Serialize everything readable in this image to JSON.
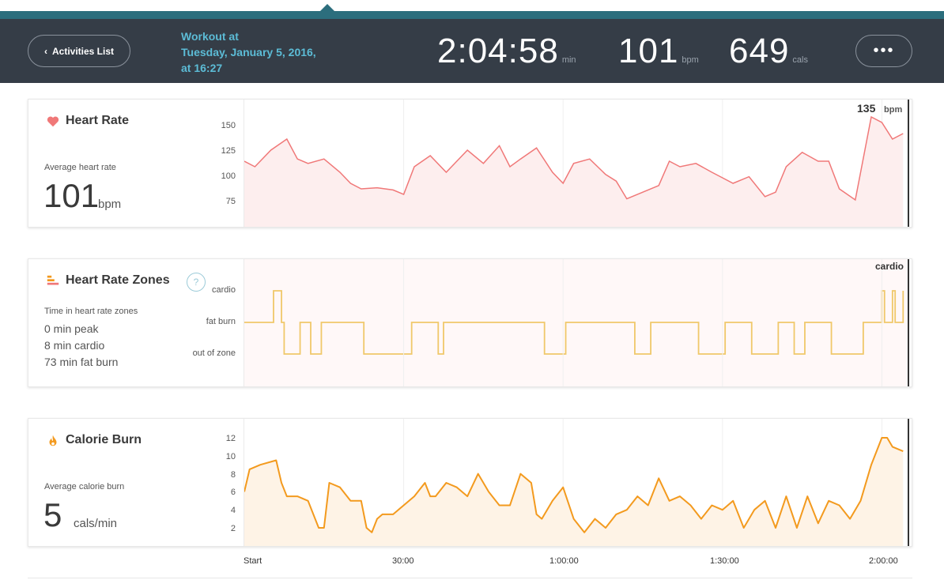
{
  "header": {
    "back_label": "Activities List",
    "workout_title_line1": "Workout at",
    "workout_title_line2": "Tuesday, January 5, 2016,",
    "workout_title_line3": "at 16:27",
    "duration": "2:04:58",
    "duration_unit": "min",
    "avg_bpm": "101",
    "avg_bpm_unit": "bpm",
    "calories": "649",
    "calories_unit": "cals",
    "more_label": "•••"
  },
  "colors": {
    "teal": "#2c6e7d",
    "header_dark": "#353d47",
    "title_blue": "#5cbcd6",
    "heart": "#f07878",
    "zones": "#f0c86a",
    "calories": "#f39a1e"
  },
  "heart_rate": {
    "title": "Heart Rate",
    "icon": "heart-icon",
    "sub": "Average heart rate",
    "value": "101",
    "unit": "bpm",
    "current_value": "135",
    "current_unit": "bpm",
    "yticks": [
      "150",
      "125",
      "100",
      "75"
    ]
  },
  "zones": {
    "title": "Heart Rate Zones",
    "icon": "zones-bars-icon",
    "help": "?",
    "sub": "Time in heart rate zones",
    "peak": "0 min peak",
    "cardio": "8 min cardio",
    "fatburn": "73 min fat burn",
    "current_zone": "cardio",
    "ylabels": [
      "cardio",
      "fat burn",
      "out of zone"
    ]
  },
  "calorie": {
    "title": "Calorie Burn",
    "icon": "flame-icon",
    "sub": "Average calorie burn",
    "value": "5",
    "unit": "cals/min",
    "yticks": [
      "12",
      "10",
      "8",
      "6",
      "4",
      "2"
    ]
  },
  "xaxis": [
    "Start",
    "30:00",
    "1:00:00",
    "1:30:00",
    "2:00:00"
  ],
  "chart_data": [
    {
      "type": "line",
      "title": "Heart Rate",
      "xlabel": "",
      "ylabel": "",
      "ylim": [
        60,
        160
      ],
      "x_unit": "minutes",
      "x": [
        0,
        2,
        5,
        8,
        10,
        12,
        15,
        18,
        20,
        22,
        25,
        28,
        30,
        32,
        35,
        38,
        40,
        42,
        45,
        48,
        50,
        52,
        55,
        58,
        60,
        62,
        65,
        68,
        70,
        72,
        75,
        78,
        80,
        82,
        85,
        88,
        90,
        92,
        95,
        98,
        100,
        102,
        105,
        108,
        110,
        112,
        115,
        118,
        120,
        122,
        124
      ],
      "values": [
        110,
        105,
        120,
        130,
        112,
        108,
        112,
        100,
        90,
        85,
        86,
        84,
        80,
        105,
        115,
        100,
        110,
        120,
        108,
        124,
        105,
        112,
        122,
        100,
        90,
        108,
        112,
        98,
        92,
        76,
        82,
        88,
        110,
        105,
        108,
        100,
        95,
        90,
        96,
        78,
        82,
        105,
        118,
        110,
        110,
        85,
        75,
        150,
        145,
        130,
        135
      ]
    },
    {
      "type": "line",
      "title": "Heart Rate Zones",
      "xlabel": "",
      "ylabel": "",
      "categories_y": [
        "out of zone",
        "fat burn",
        "cardio"
      ],
      "x_unit": "minutes",
      "x": [
        0,
        5,
        5.5,
        7,
        7.5,
        10,
        10.5,
        12,
        12.5,
        14,
        14.5,
        22,
        22.5,
        31,
        31.5,
        36,
        36.5,
        37,
        37.5,
        56,
        56.5,
        60,
        60.5,
        73,
        73.5,
        76,
        76.5,
        85,
        85.5,
        90,
        90.5,
        95,
        95.5,
        100,
        100.5,
        103,
        103.5,
        105,
        105.5,
        110,
        110.5,
        116,
        116.5,
        120,
        120.5,
        122,
        122.5,
        124
      ],
      "values": [
        1,
        1,
        2,
        1,
        0,
        0,
        1,
        1,
        0,
        0,
        1,
        1,
        0,
        0,
        1,
        1,
        0,
        0,
        1,
        1,
        0,
        0,
        1,
        1,
        0,
        0,
        1,
        1,
        0,
        0,
        1,
        1,
        0,
        0,
        1,
        1,
        0,
        0,
        1,
        1,
        0,
        0,
        1,
        2,
        1,
        2,
        1,
        2
      ]
    },
    {
      "type": "area",
      "title": "Calorie Burn",
      "xlabel": "",
      "ylabel": "",
      "ylim": [
        1,
        13
      ],
      "x_unit": "minutes",
      "x": [
        0,
        1,
        3,
        6,
        7,
        8,
        10,
        12,
        14,
        15,
        16,
        18,
        20,
        22,
        23,
        24,
        25,
        26,
        28,
        30,
        32,
        34,
        35,
        36,
        38,
        40,
        42,
        44,
        46,
        48,
        50,
        52,
        54,
        55,
        56,
        58,
        60,
        62,
        64,
        66,
        68,
        70,
        72,
        74,
        76,
        78,
        80,
        82,
        84,
        86,
        88,
        90,
        92,
        94,
        96,
        98,
        100,
        102,
        104,
        106,
        108,
        110,
        112,
        114,
        116,
        118,
        120,
        121,
        122,
        124
      ],
      "values": [
        6,
        8.5,
        9,
        9.5,
        7,
        5.5,
        5.5,
        5,
        2,
        2,
        7,
        6.5,
        5,
        5,
        2,
        1.5,
        3,
        3.5,
        3.5,
        4.5,
        5.5,
        7,
        5.5,
        5.5,
        7,
        6.5,
        5.5,
        8,
        6,
        4.5,
        4.5,
        8,
        7,
        3.5,
        3,
        5,
        6.5,
        3,
        1.5,
        3,
        2,
        3.5,
        4,
        5.5,
        4.5,
        7.5,
        5,
        5.5,
        4.5,
        3,
        4.5,
        4,
        5,
        2,
        4,
        5,
        2,
        5.5,
        2,
        5.5,
        2.5,
        5,
        4.5,
        3,
        5,
        9,
        12,
        12,
        11,
        10.5
      ]
    }
  ]
}
